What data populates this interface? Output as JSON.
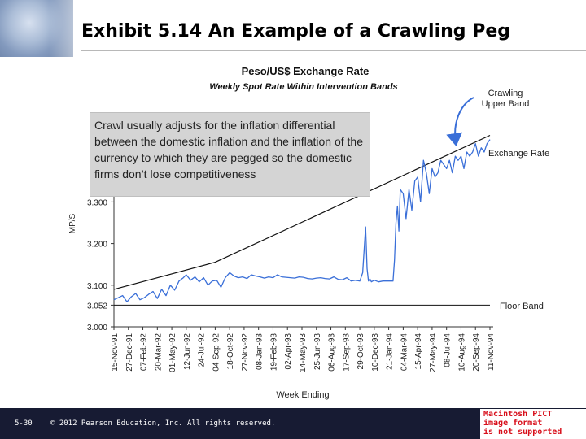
{
  "slide": {
    "title": "Exhibit 5.14  An Example of a Crawling Peg",
    "callout": "Crawl usually adjusts for the inflation differential between the domestic inflation and the inflation of the currency to which they are pegged so the domestic firms don’t lose competitiveness",
    "footer_page": "5-30",
    "footer_copy": "© 2012 Pearson Education, Inc. All rights reserved.",
    "pict_lines": [
      "Macintosh PICT",
      "image format",
      "is not supported"
    ]
  },
  "chart_data": {
    "type": "line",
    "title": "Peso/US$ Exchange Rate",
    "subtitle": "Weekly Spot Rate Within Intervention Bands",
    "xlabel": "Week Ending",
    "ylabel": "MP/S",
    "categories": [
      "15-Nov-91",
      "27-Dec-91",
      "07-Feb-92",
      "20-Mar-92",
      "01-May-92",
      "12-Jun-92",
      "24-Jul-92",
      "04-Sep-92",
      "18-Oct-92",
      "27-Nov-92",
      "08-Jan-93",
      "19-Feb-93",
      "02-Apr-93",
      "14-May-93",
      "25-Jun-93",
      "06-Aug-93",
      "17-Sep-93",
      "29-Oct-93",
      "10-Dec-93",
      "21-Jan-94",
      "04-Mar-94",
      "15-Apr-94",
      "27-May-94",
      "08-Jul-94",
      "10-Aug-94",
      "20-Sep-94",
      "11-Nov-94"
    ],
    "yticks": [
      3.0,
      3.052,
      3.1,
      3.2,
      3.3
    ],
    "ylim": [
      3.0,
      3.5
    ],
    "annotations": {
      "upper_band": "Crawling\nUpper Band",
      "exchange_rate": "Exchange Rate",
      "floor_band": "Floor Band"
    },
    "series": [
      {
        "name": "Floor Band",
        "x": [
          0,
          26
        ],
        "values": [
          3.052,
          3.052
        ]
      },
      {
        "name": "Crawling Upper Band",
        "x": [
          0,
          7,
          26
        ],
        "values": [
          3.09,
          3.155,
          3.46
        ]
      },
      {
        "name": "Exchange Rate",
        "x": [
          0,
          0.3,
          0.6,
          0.9,
          1.2,
          1.5,
          1.8,
          2.1,
          2.4,
          2.7,
          3,
          3.3,
          3.6,
          3.9,
          4.2,
          4.5,
          4.8,
          5,
          5.3,
          5.6,
          5.9,
          6.2,
          6.5,
          6.8,
          7.1,
          7.4,
          7.7,
          8,
          8.3,
          8.6,
          8.9,
          9.2,
          9.5,
          9.8,
          10.1,
          10.4,
          10.7,
          11,
          11.3,
          11.6,
          11.9,
          12.2,
          12.5,
          12.8,
          13.1,
          13.4,
          13.7,
          14,
          14.3,
          14.6,
          14.9,
          15.2,
          15.5,
          15.8,
          16.1,
          16.4,
          16.7,
          17,
          17.2,
          17.4,
          17.5,
          17.6,
          17.7,
          17.8,
          18,
          18.3,
          18.6,
          18.9,
          19.2,
          19.3,
          19.4,
          19.5,
          19.6,
          19.7,
          19.8,
          20,
          20.2,
          20.4,
          20.6,
          20.8,
          21,
          21.2,
          21.4,
          21.6,
          21.8,
          22,
          22.2,
          22.4,
          22.6,
          22.8,
          23,
          23.2,
          23.4,
          23.6,
          23.8,
          24,
          24.2,
          24.4,
          24.6,
          24.8,
          25,
          25.2,
          25.4,
          25.6,
          25.8,
          26
        ],
        "values": [
          3.065,
          3.07,
          3.075,
          3.06,
          3.072,
          3.08,
          3.065,
          3.07,
          3.078,
          3.085,
          3.068,
          3.09,
          3.075,
          3.1,
          3.088,
          3.11,
          3.118,
          3.125,
          3.112,
          3.12,
          3.108,
          3.118,
          3.1,
          3.11,
          3.112,
          3.095,
          3.118,
          3.13,
          3.122,
          3.118,
          3.12,
          3.116,
          3.125,
          3.122,
          3.12,
          3.117,
          3.12,
          3.118,
          3.125,
          3.12,
          3.119,
          3.118,
          3.117,
          3.12,
          3.119,
          3.116,
          3.115,
          3.117,
          3.118,
          3.116,
          3.115,
          3.12,
          3.114,
          3.113,
          3.118,
          3.11,
          3.112,
          3.11,
          3.13,
          3.24,
          3.14,
          3.11,
          3.115,
          3.108,
          3.112,
          3.108,
          3.11,
          3.11,
          3.11,
          3.11,
          3.16,
          3.25,
          3.29,
          3.23,
          3.33,
          3.32,
          3.26,
          3.33,
          3.28,
          3.35,
          3.36,
          3.3,
          3.4,
          3.37,
          3.32,
          3.38,
          3.36,
          3.37,
          3.4,
          3.39,
          3.38,
          3.4,
          3.37,
          3.41,
          3.4,
          3.41,
          3.38,
          3.42,
          3.41,
          3.42,
          3.44,
          3.41,
          3.43,
          3.42,
          3.44,
          3.45
        ]
      }
    ]
  }
}
